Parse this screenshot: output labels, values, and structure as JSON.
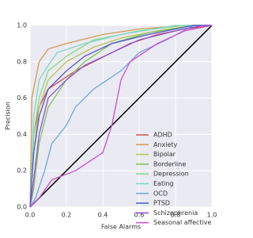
{
  "chart_data": {
    "type": "line",
    "xlabel": "False Alarms",
    "ylabel": "Precision",
    "xlim": [
      0,
      1
    ],
    "ylim": [
      0,
      1
    ],
    "xticks": [
      {
        "value": 0,
        "label": "0.0"
      },
      {
        "value": 0.2,
        "label": "0.2"
      },
      {
        "value": 0.4,
        "label": "0.4"
      },
      {
        "value": 0.6,
        "label": "0.6"
      },
      {
        "value": 0.8,
        "label": "0.8"
      },
      {
        "value": 1,
        "label": "1.0"
      }
    ],
    "yticks": [
      {
        "value": 0,
        "label": "0.0"
      },
      {
        "value": 0.2,
        "label": "0.2"
      },
      {
        "value": 0.4,
        "label": "0.4"
      },
      {
        "value": 0.6,
        "label": "0.6"
      },
      {
        "value": 0.8,
        "label": "0.8"
      },
      {
        "value": 1,
        "label": "1.0"
      }
    ],
    "grid": true,
    "legend": "lower right",
    "diagonal_reference": true,
    "series": [
      {
        "name": "ADHD",
        "color": "#d0504f",
        "x": [
          0,
          0.02,
          0.05,
          0.1,
          0.25,
          0.35,
          0.45,
          0.55,
          0.7,
          0.85,
          1
        ],
        "values": [
          0,
          0.4,
          0.55,
          0.65,
          0.75,
          0.8,
          0.85,
          0.9,
          0.95,
          0.98,
          1
        ]
      },
      {
        "name": "Anxiety",
        "color": "#d09a4f",
        "x": [
          0,
          0.01,
          0.05,
          0.1,
          0.2,
          0.4,
          0.6,
          0.85,
          1
        ],
        "values": [
          0,
          0.6,
          0.8,
          0.87,
          0.9,
          0.95,
          0.98,
          1,
          1
        ]
      },
      {
        "name": "Bipolar",
        "color": "#b8c44f",
        "x": [
          0,
          0.02,
          0.05,
          0.1,
          0.2,
          0.35,
          0.5,
          0.7,
          0.9,
          1
        ],
        "values": [
          0,
          0.3,
          0.55,
          0.7,
          0.8,
          0.88,
          0.93,
          0.97,
          1,
          1
        ]
      },
      {
        "name": "Borderline",
        "color": "#7ec44f",
        "x": [
          0,
          0.02,
          0.05,
          0.1,
          0.2,
          0.3,
          0.45,
          0.65,
          0.9,
          1
        ],
        "values": [
          0,
          0.1,
          0.35,
          0.55,
          0.7,
          0.8,
          0.9,
          0.96,
          1,
          1
        ]
      },
      {
        "name": "Depression",
        "color": "#84d986",
        "x": [
          0,
          0.02,
          0.05,
          0.1,
          0.2,
          0.35,
          0.6,
          0.85,
          1
        ],
        "values": [
          0,
          0.4,
          0.6,
          0.75,
          0.83,
          0.92,
          0.97,
          1,
          1
        ]
      },
      {
        "name": "Eating",
        "color": "#7fd6c6",
        "x": [
          0,
          0.02,
          0.05,
          0.1,
          0.15,
          0.3,
          0.5,
          0.8,
          1
        ],
        "values": [
          0,
          0.5,
          0.7,
          0.78,
          0.85,
          0.9,
          0.95,
          1,
          1
        ]
      },
      {
        "name": "OCD",
        "color": "#6aa7e0",
        "x": [
          0,
          0.03,
          0.08,
          0.12,
          0.2,
          0.25,
          0.35,
          0.5,
          0.6,
          0.75,
          0.9,
          1
        ],
        "values": [
          0,
          0.05,
          0.2,
          0.35,
          0.45,
          0.55,
          0.65,
          0.75,
          0.85,
          0.92,
          1,
          1
        ]
      },
      {
        "name": "PTSD",
        "color": "#4d55c7",
        "x": [
          0,
          0.02,
          0.05,
          0.1,
          0.2,
          0.3,
          0.45,
          0.65,
          0.9,
          1
        ],
        "values": [
          0,
          0.3,
          0.5,
          0.65,
          0.75,
          0.83,
          0.9,
          0.95,
          1,
          1
        ]
      },
      {
        "name": "Schizophrenia",
        "color": "#8a4fd0",
        "x": [
          0,
          0.02,
          0.05,
          0.1,
          0.2,
          0.3,
          0.45,
          0.6,
          0.8,
          0.95,
          1
        ],
        "values": [
          0,
          0.15,
          0.4,
          0.6,
          0.7,
          0.78,
          0.85,
          0.92,
          0.97,
          1,
          1
        ]
      },
      {
        "name": "Seasonal affective",
        "color": "#c94fd0",
        "x": [
          0,
          0.05,
          0.12,
          0.25,
          0.4,
          0.45,
          0.5,
          0.55,
          0.7,
          0.85,
          1
        ],
        "values": [
          0,
          0.05,
          0.15,
          0.2,
          0.3,
          0.45,
          0.7,
          0.8,
          0.9,
          0.97,
          1
        ]
      }
    ]
  }
}
